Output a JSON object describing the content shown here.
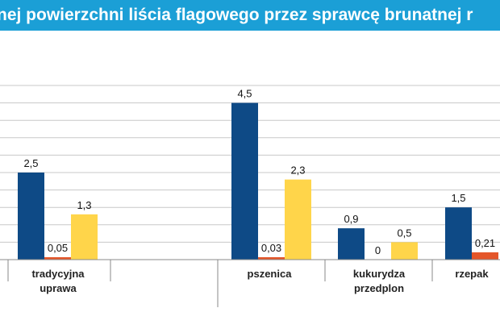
{
  "header": {
    "title": "nej powierzchni liścia flagowego przez sprawcę brunatnej r"
  },
  "chart_data": {
    "type": "bar",
    "title": "nej powierzchni liścia flagowego przez sprawcę brunatnej r",
    "xlabel": "",
    "ylabel": "",
    "ylim": [
      0,
      5
    ],
    "grid": true,
    "legend": "none",
    "groups": [
      {
        "label": [
          "tradycyjna",
          "uprawa"
        ],
        "values": [
          2.5,
          0.05,
          1.3
        ],
        "labels": [
          "2,5",
          "0,05",
          "1,3"
        ]
      },
      {
        "label": [
          "pszenica"
        ],
        "values": [
          4.5,
          0.03,
          2.3
        ],
        "labels": [
          "4,5",
          "0,03",
          "2,3"
        ]
      },
      {
        "label": [
          "kukurydza",
          "przedplon"
        ],
        "values": [
          0.9,
          0,
          0.5
        ],
        "labels": [
          "0,9",
          "0",
          "0,5"
        ]
      },
      {
        "label": [
          "rzepak"
        ],
        "values": [
          1.5,
          0.21
        ],
        "labels": [
          "1,5",
          "0,21"
        ]
      }
    ],
    "colors": [
      "#0e4a86",
      "#e4562a",
      "#ffd54a"
    ],
    "grid_color": "#c8c8c8",
    "axis_color": "#8a8a8a"
  }
}
